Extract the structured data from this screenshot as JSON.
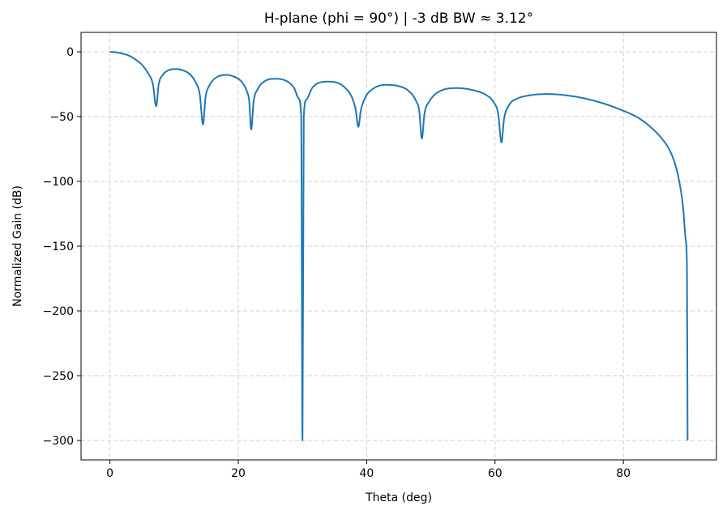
{
  "chart_data": {
    "type": "line",
    "title": "H-plane (phi = 90°)  |  -3 dB BW ≈ 3.12°",
    "xlabel": "Theta (deg)",
    "ylabel": "Normalized Gain (dB)",
    "xlim": [
      -4.5,
      94.5
    ],
    "ylim": [
      -315,
      15
    ],
    "xticks": [
      0,
      20,
      40,
      60,
      80
    ],
    "yticks": [
      0,
      -50,
      -100,
      -150,
      -200,
      -250,
      -300
    ],
    "ytick_labels": [
      "0",
      "−50",
      "−100",
      "−150",
      "−200",
      "−250",
      "−300"
    ],
    "grid": true,
    "grid_style": "dashed",
    "line_color": "#1f77b4",
    "series": [
      {
        "x": [
          0,
          1,
          2,
          3,
          4,
          5,
          6,
          6.7,
          7.2,
          7.6,
          8.2,
          9,
          10.3,
          11.5,
          12.5,
          13.3,
          14,
          14.5,
          14.9,
          15.5,
          16.5,
          18,
          19.5,
          20.5,
          21.3,
          21.7,
          22,
          22.4,
          23,
          24,
          25.8,
          27.5,
          28.7,
          29.4,
          29.8,
          30,
          30.2,
          30.6,
          31.5,
          32.5,
          34,
          35.5,
          36.7,
          37.7,
          38.3,
          38.7,
          39.1,
          39.8,
          41,
          43,
          45,
          46.5,
          47.6,
          48.2,
          48.6,
          49,
          49.8,
          51,
          54,
          56.5,
          58.5,
          59.8,
          60.5,
          61,
          61.4,
          62.2,
          63.5,
          65.5,
          68,
          71,
          74,
          77,
          80,
          82,
          84,
          86,
          87.5,
          88.5,
          89.3,
          89.7,
          89.9,
          90
        ],
        "y": [
          0,
          -0.4,
          -1.5,
          -3,
          -6,
          -10,
          -17,
          -25,
          -42,
          -25,
          -18,
          -14.5,
          -13.3,
          -14.5,
          -17.5,
          -23,
          -33,
          -56,
          -35,
          -26,
          -20,
          -17.8,
          -19.5,
          -23,
          -30,
          -38,
          -60,
          -38,
          -29,
          -23,
          -20.8,
          -22.5,
          -28,
          -36,
          -50,
          -300,
          -50,
          -37,
          -28,
          -24,
          -23,
          -24,
          -28,
          -35,
          -45,
          -58,
          -45,
          -35,
          -28.5,
          -25.5,
          -26.5,
          -30,
          -37,
          -46,
          -67,
          -48,
          -38,
          -31.5,
          -28,
          -29.5,
          -33,
          -39,
          -48,
          -70,
          -52,
          -41,
          -36,
          -33.5,
          -32.6,
          -33.5,
          -36,
          -40,
          -45.5,
          -50,
          -57,
          -67,
          -79,
          -95,
          -120,
          -145,
          -165,
          -300
        ]
      }
    ]
  }
}
